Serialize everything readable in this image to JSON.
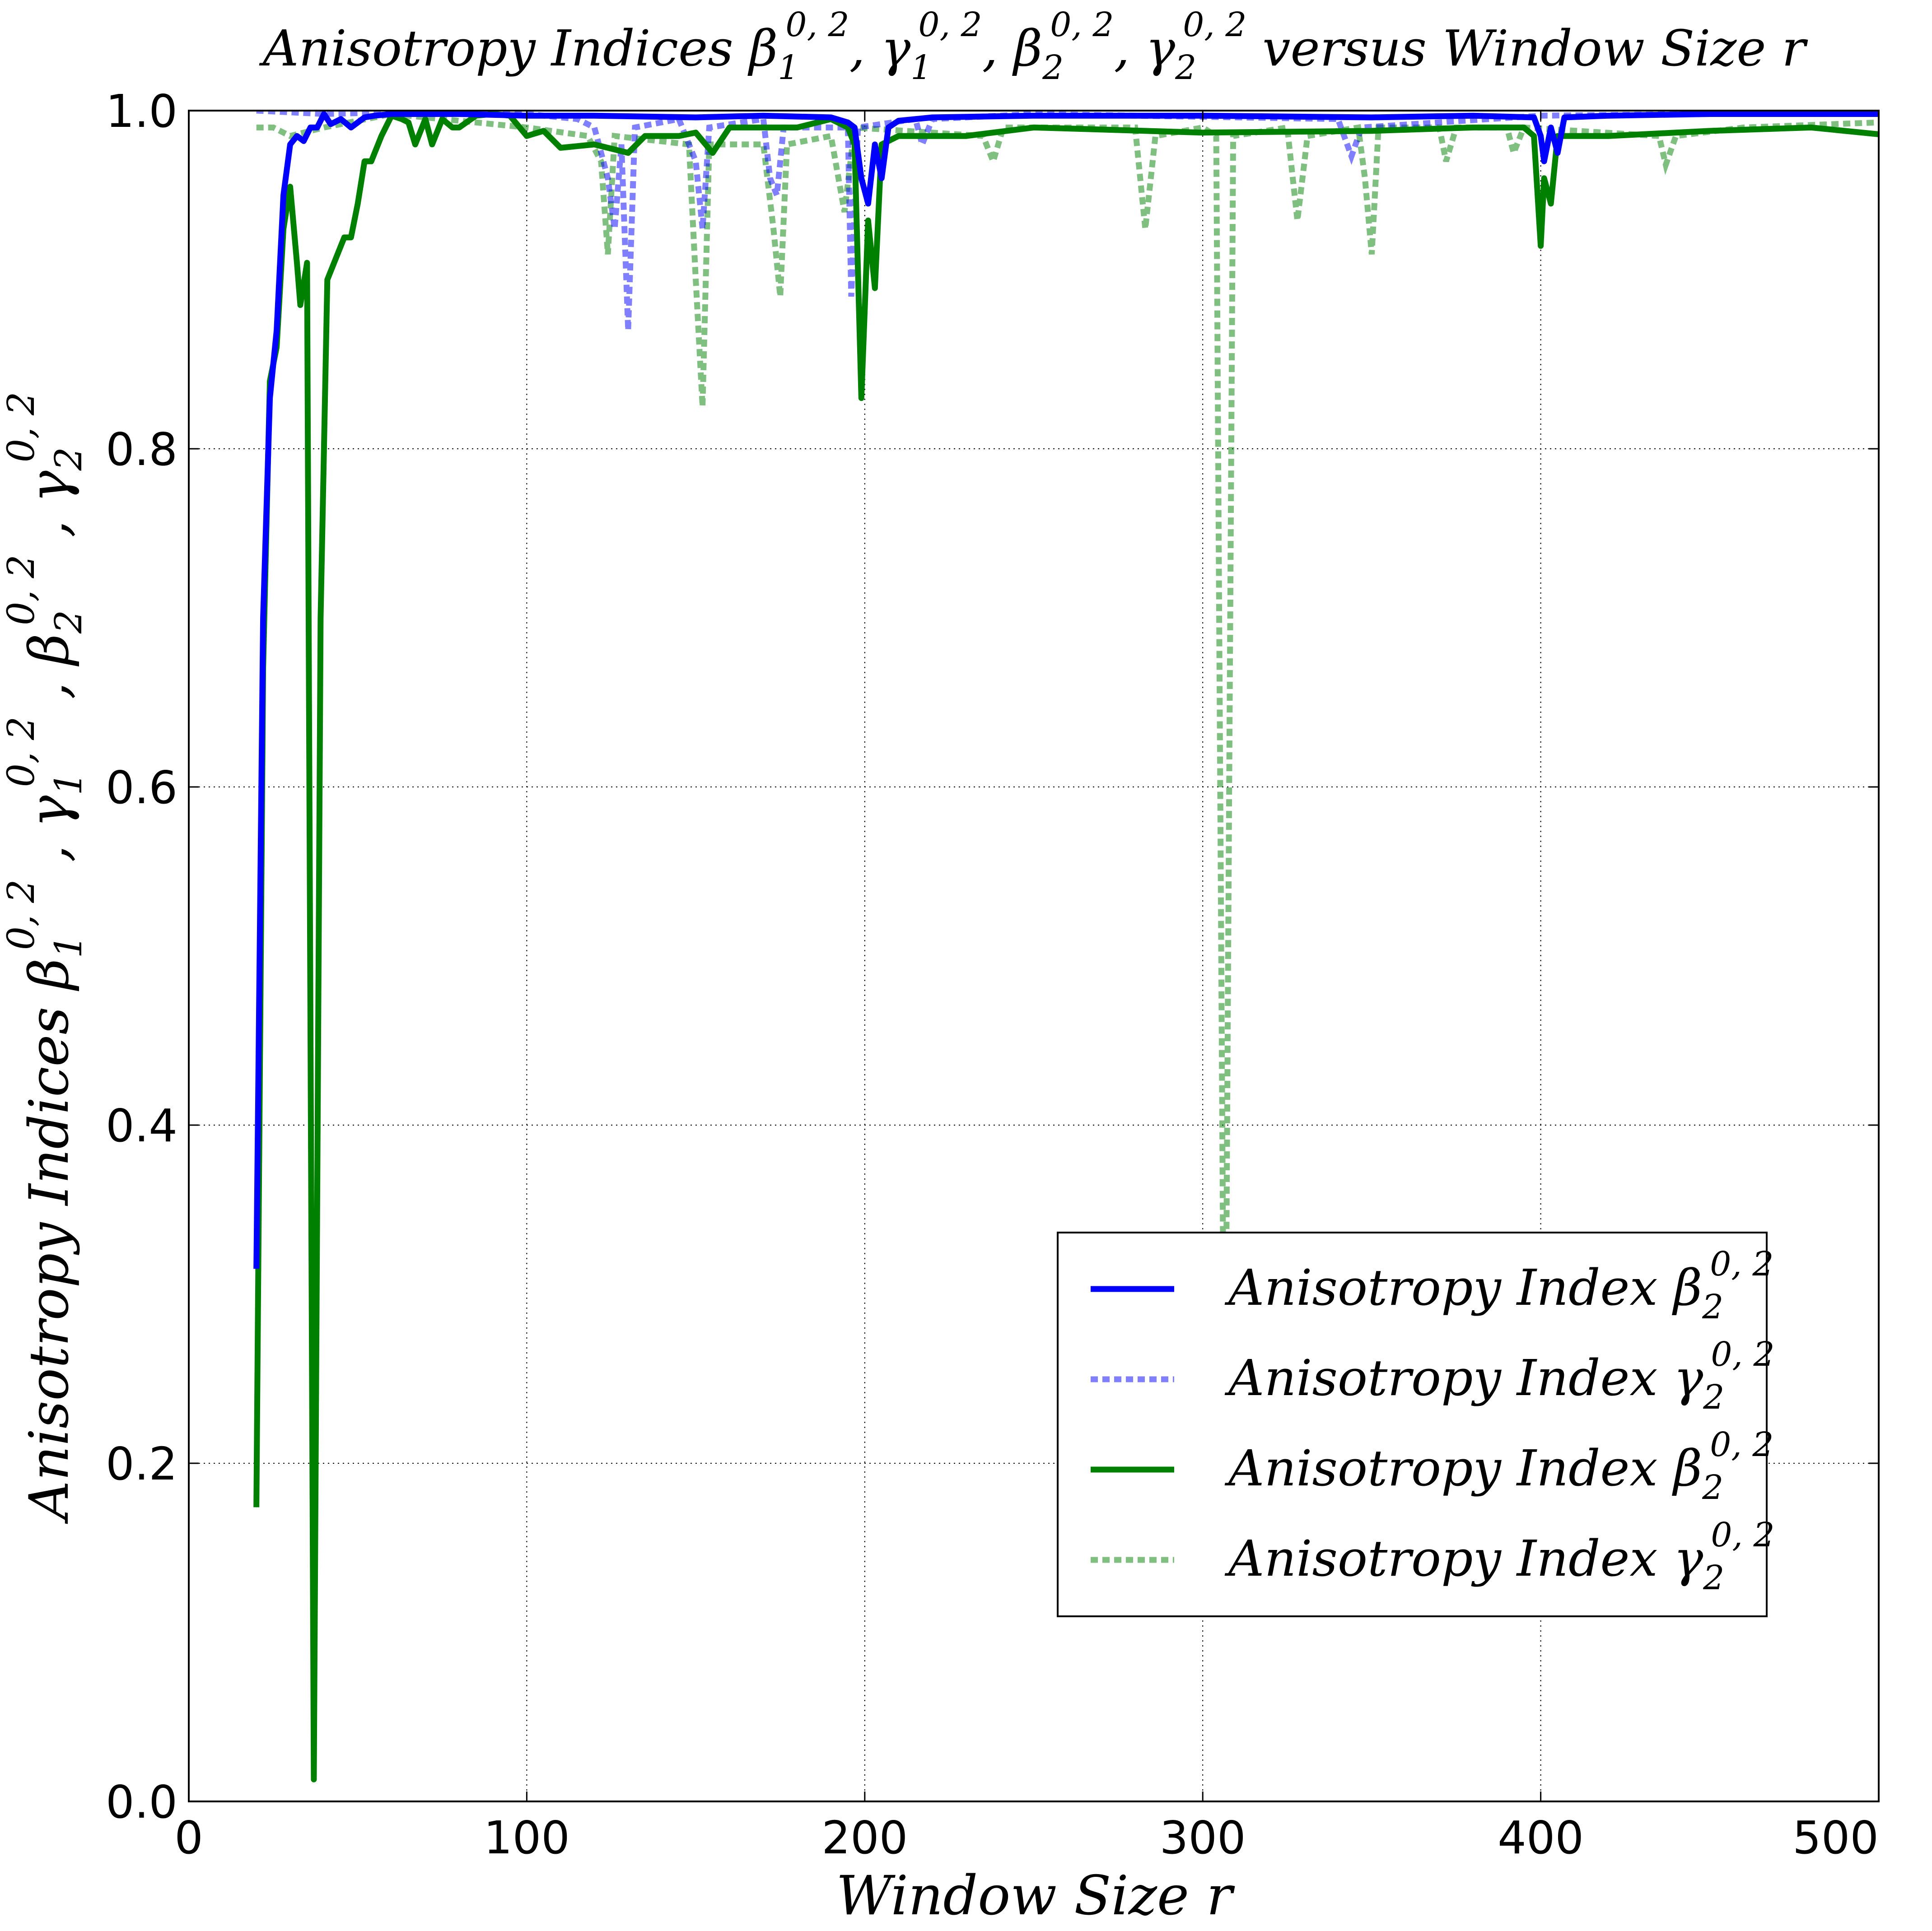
{
  "chart_data": {
    "type": "line",
    "title": "Anisotropy Indices β1^{0,2}, γ1^{0,2}, β2^{0,2}, γ2^{0,2} versus Window Size r",
    "title_parts": {
      "prefix": "Anisotropy Indices ",
      "sym1": "β",
      "sub1": "1",
      "sup1": "0, 2",
      "sep1": ", ",
      "sym2": "γ",
      "sub2": "1",
      "sup2": "0, 2",
      "sep2": ",  ",
      "sym3": "β",
      "sub3": "2",
      "sup3": "0, 2",
      "sep3": ", ",
      "sym4": "γ",
      "sub4": "2",
      "sup4": "0, 2",
      "suffix": " versus Window Size r"
    },
    "xlabel": "Window Size r",
    "ylabel": "Anisotropy Indices β1^{0,2}, γ1^{0,2}, β2^{0,2}, γ2^{0,2}",
    "ylabel_parts": {
      "prefix": "Anisotropy Indices ",
      "sym1": "β",
      "sub1": "1",
      "sup1": "0, 2",
      "sym2": "γ",
      "sub2": "1",
      "sup2": "0, 2",
      "sym3": "β",
      "sub3": "2",
      "sup3": "0, 2",
      "sym4": "γ",
      "sub4": "2",
      "sup4": "0, 2",
      "sep": " , "
    },
    "xlim": [
      0,
      500
    ],
    "ylim": [
      0.0,
      1.0
    ],
    "xticks": [
      0,
      100,
      200,
      300,
      400,
      500
    ],
    "xtick_labels": [
      "0",
      "100",
      "200",
      "300",
      "400",
      "500"
    ],
    "yticks": [
      0.0,
      0.2,
      0.4,
      0.6,
      0.8,
      1.0
    ],
    "ytick_labels": [
      "0.0",
      "0.2",
      "0.4",
      "0.6",
      "0.8",
      "1.0"
    ],
    "grid": true,
    "legend_position": "lower-right",
    "series": [
      {
        "name": "Anisotropy Index β2^{0,2}",
        "legend": {
          "prefix": "Anisotropy Index ",
          "sym": "β",
          "sub": "2",
          "sup": "0, 2"
        },
        "color": "#0000ff",
        "style": "solid",
        "opacity": 1.0,
        "points": [
          [
            20,
            0.315
          ],
          [
            22,
            0.7
          ],
          [
            24,
            0.83
          ],
          [
            26,
            0.87
          ],
          [
            28,
            0.95
          ],
          [
            30,
            0.98
          ],
          [
            32,
            0.985
          ],
          [
            34,
            0.982
          ],
          [
            36,
            0.99
          ],
          [
            38,
            0.99
          ],
          [
            40,
            0.998
          ],
          [
            42,
            0.992
          ],
          [
            45,
            0.995
          ],
          [
            48,
            0.99
          ],
          [
            52,
            0.996
          ],
          [
            55,
            0.997
          ],
          [
            60,
            0.998
          ],
          [
            70,
            0.998
          ],
          [
            80,
            0.998
          ],
          [
            100,
            0.997
          ],
          [
            120,
            0.997
          ],
          [
            150,
            0.996
          ],
          [
            170,
            0.997
          ],
          [
            190,
            0.996
          ],
          [
            195,
            0.993
          ],
          [
            197,
            0.99
          ],
          [
            199,
            0.96
          ],
          [
            201,
            0.945
          ],
          [
            203,
            0.98
          ],
          [
            205,
            0.96
          ],
          [
            207,
            0.99
          ],
          [
            210,
            0.994
          ],
          [
            220,
            0.996
          ],
          [
            250,
            0.997
          ],
          [
            300,
            0.997
          ],
          [
            350,
            0.996
          ],
          [
            380,
            0.997
          ],
          [
            398,
            0.996
          ],
          [
            400,
            0.985
          ],
          [
            401,
            0.97
          ],
          [
            403,
            0.99
          ],
          [
            405,
            0.975
          ],
          [
            407,
            0.996
          ],
          [
            420,
            0.997
          ],
          [
            450,
            0.998
          ],
          [
            500,
            0.998
          ]
        ]
      },
      {
        "name": "Anisotropy Index γ2^{0,2}",
        "legend": {
          "prefix": "Anisotropy Index ",
          "sym": "γ",
          "sub": "2",
          "sup": "0, 2"
        },
        "color": "#0000ff",
        "style": "dashed",
        "opacity": 0.5,
        "points": [
          [
            20,
            1.0
          ],
          [
            40,
            0.998
          ],
          [
            60,
            0.999
          ],
          [
            100,
            0.998
          ],
          [
            115,
            0.995
          ],
          [
            120,
            0.99
          ],
          [
            124,
            0.96
          ],
          [
            126,
            0.93
          ],
          [
            128,
            0.98
          ],
          [
            130,
            0.87
          ],
          [
            132,
            0.99
          ],
          [
            145,
            0.995
          ],
          [
            150,
            0.97
          ],
          [
            152,
            0.93
          ],
          [
            154,
            0.99
          ],
          [
            170,
            0.995
          ],
          [
            172,
            0.96
          ],
          [
            174,
            0.95
          ],
          [
            176,
            0.99
          ],
          [
            195,
            0.99
          ],
          [
            196,
            0.89
          ],
          [
            198,
            0.99
          ],
          [
            215,
            0.995
          ],
          [
            217,
            0.98
          ],
          [
            220,
            0.995
          ],
          [
            250,
            0.998
          ],
          [
            340,
            0.995
          ],
          [
            344,
            0.973
          ],
          [
            347,
            0.99
          ],
          [
            400,
            0.997
          ],
          [
            450,
            0.998
          ],
          [
            500,
            0.998
          ]
        ]
      },
      {
        "name": "Anisotropy Index β2^{0,2}",
        "legend": {
          "prefix": "Anisotropy Index ",
          "sym": "β",
          "sub": "2",
          "sup": "0, 2"
        },
        "color": "#008000",
        "style": "solid",
        "opacity": 1.0,
        "points": [
          [
            20,
            0.174
          ],
          [
            22,
            0.67
          ],
          [
            24,
            0.84
          ],
          [
            26,
            0.86
          ],
          [
            28,
            0.93
          ],
          [
            30,
            0.955
          ],
          [
            32,
            0.91
          ],
          [
            33,
            0.885
          ],
          [
            35,
            0.91
          ],
          [
            37,
            0.013
          ],
          [
            39,
            0.7
          ],
          [
            41,
            0.9
          ],
          [
            44,
            0.915
          ],
          [
            46,
            0.925
          ],
          [
            48,
            0.925
          ],
          [
            50,
            0.945
          ],
          [
            52,
            0.97
          ],
          [
            54,
            0.97
          ],
          [
            57,
            0.985
          ],
          [
            60,
            0.997
          ],
          [
            63,
            0.995
          ],
          [
            65,
            0.993
          ],
          [
            67,
            0.98
          ],
          [
            70,
            0.995
          ],
          [
            72,
            0.98
          ],
          [
            75,
            0.995
          ],
          [
            78,
            0.99
          ],
          [
            80,
            0.99
          ],
          [
            85,
            0.997
          ],
          [
            90,
            0.998
          ],
          [
            95,
            0.997
          ],
          [
            100,
            0.985
          ],
          [
            105,
            0.988
          ],
          [
            110,
            0.978
          ],
          [
            120,
            0.98
          ],
          [
            130,
            0.975
          ],
          [
            135,
            0.985
          ],
          [
            145,
            0.985
          ],
          [
            150,
            0.987
          ],
          [
            155,
            0.975
          ],
          [
            160,
            0.99
          ],
          [
            165,
            0.99
          ],
          [
            180,
            0.99
          ],
          [
            190,
            0.995
          ],
          [
            195,
            0.99
          ],
          [
            197,
            0.98
          ],
          [
            199,
            0.83
          ],
          [
            201,
            0.935
          ],
          [
            203,
            0.895
          ],
          [
            205,
            0.98
          ],
          [
            210,
            0.985
          ],
          [
            230,
            0.985
          ],
          [
            250,
            0.99
          ],
          [
            300,
            0.987
          ],
          [
            350,
            0.988
          ],
          [
            380,
            0.99
          ],
          [
            395,
            0.99
          ],
          [
            398,
            0.985
          ],
          [
            400,
            0.92
          ],
          [
            401,
            0.96
          ],
          [
            403,
            0.945
          ],
          [
            405,
            0.985
          ],
          [
            420,
            0.985
          ],
          [
            450,
            0.988
          ],
          [
            480,
            0.99
          ],
          [
            500,
            0.986
          ]
        ]
      },
      {
        "name": "Anisotropy Index γ2^{0,2}",
        "legend": {
          "prefix": "Anisotropy Index ",
          "sym": "γ",
          "sub": "2",
          "sup": "0, 2"
        },
        "color": "#008000",
        "style": "dashed",
        "opacity": 0.5,
        "points": [
          [
            20,
            0.99
          ],
          [
            25,
            0.99
          ],
          [
            30,
            0.985
          ],
          [
            40,
            0.99
          ],
          [
            60,
            0.998
          ],
          [
            100,
            0.99
          ],
          [
            118,
            0.985
          ],
          [
            122,
            0.97
          ],
          [
            124,
            0.915
          ],
          [
            126,
            0.985
          ],
          [
            148,
            0.98
          ],
          [
            150,
            0.9
          ],
          [
            152,
            0.825
          ],
          [
            154,
            0.98
          ],
          [
            170,
            0.98
          ],
          [
            173,
            0.93
          ],
          [
            175,
            0.89
          ],
          [
            177,
            0.98
          ],
          [
            190,
            0.985
          ],
          [
            194,
            0.94
          ],
          [
            197,
            0.99
          ],
          [
            235,
            0.985
          ],
          [
            238,
            0.97
          ],
          [
            241,
            0.99
          ],
          [
            280,
            0.99
          ],
          [
            283,
            0.93
          ],
          [
            286,
            0.985
          ],
          [
            300,
            0.99
          ],
          [
            304,
            0.985
          ],
          [
            306,
            0.33
          ],
          [
            307,
            0.33
          ],
          [
            309,
            0.985
          ],
          [
            325,
            0.99
          ],
          [
            328,
            0.935
          ],
          [
            331,
            0.985
          ],
          [
            346,
            0.99
          ],
          [
            348,
            0.96
          ],
          [
            350,
            0.915
          ],
          [
            352,
            0.99
          ],
          [
            370,
            0.99
          ],
          [
            372,
            0.97
          ],
          [
            375,
            0.99
          ],
          [
            390,
            0.99
          ],
          [
            392,
            0.975
          ],
          [
            395,
            0.99
          ],
          [
            435,
            0.985
          ],
          [
            437,
            0.968
          ],
          [
            440,
            0.985
          ],
          [
            460,
            0.99
          ],
          [
            500,
            0.993
          ]
        ]
      }
    ]
  }
}
